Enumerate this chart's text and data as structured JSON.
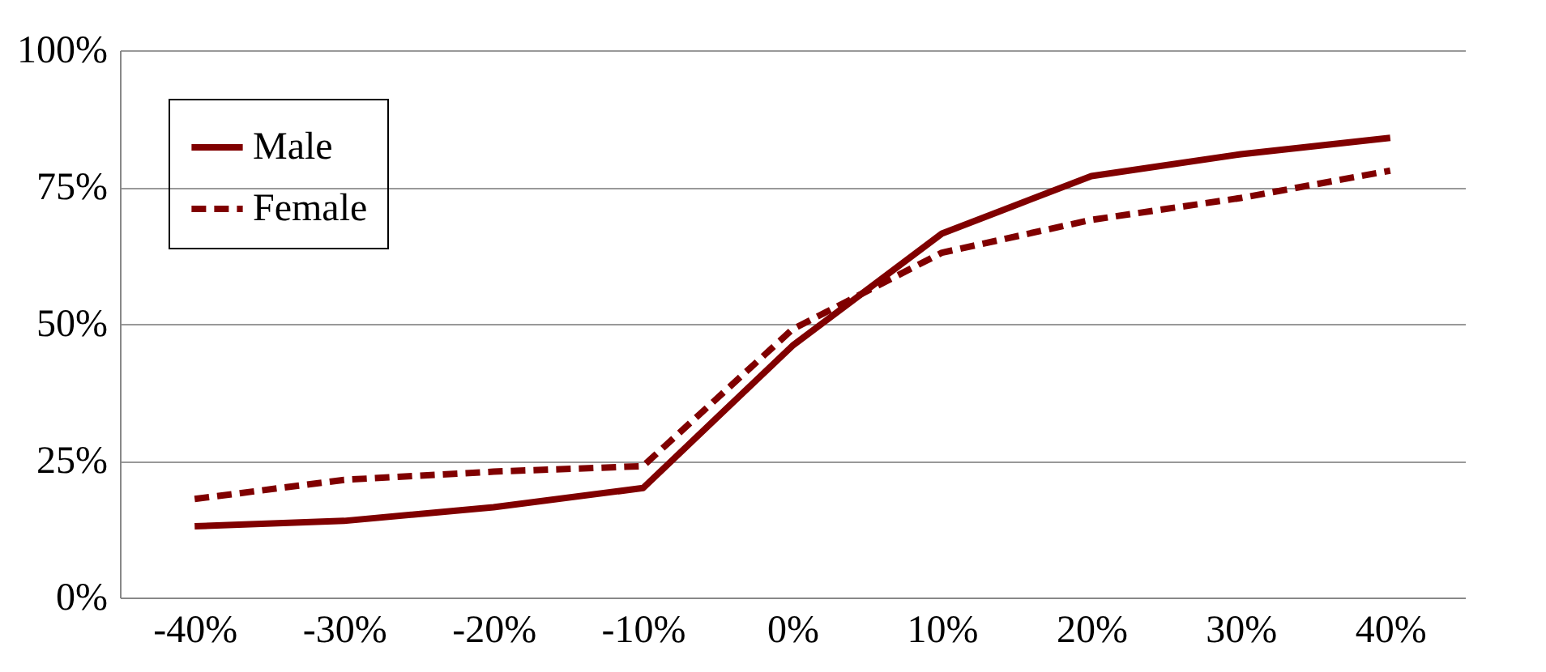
{
  "chart_data": {
    "type": "line",
    "categories": [
      "-40%",
      "-30%",
      "-20%",
      "-10%",
      "0%",
      "10%",
      "20%",
      "30%",
      "40%"
    ],
    "series": [
      {
        "name": "Male",
        "color": "#800000",
        "line_style": "solid",
        "values": [
          13,
          14,
          16.5,
          20,
          46,
          66.5,
          77,
          81,
          84
        ]
      },
      {
        "name": "Female",
        "color": "#800000",
        "line_style": "dashed",
        "values": [
          18,
          21.5,
          23,
          24,
          49,
          63,
          69,
          73,
          78
        ]
      }
    ],
    "ylim": [
      0,
      100
    ],
    "yticks": [
      {
        "value": 0,
        "label": "0%"
      },
      {
        "value": 25,
        "label": "25%"
      },
      {
        "value": 50,
        "label": "50%"
      },
      {
        "value": 75,
        "label": "75%"
      },
      {
        "value": 100,
        "label": "100%"
      }
    ],
    "grid": "y",
    "legend": "top left",
    "marker": "none"
  }
}
